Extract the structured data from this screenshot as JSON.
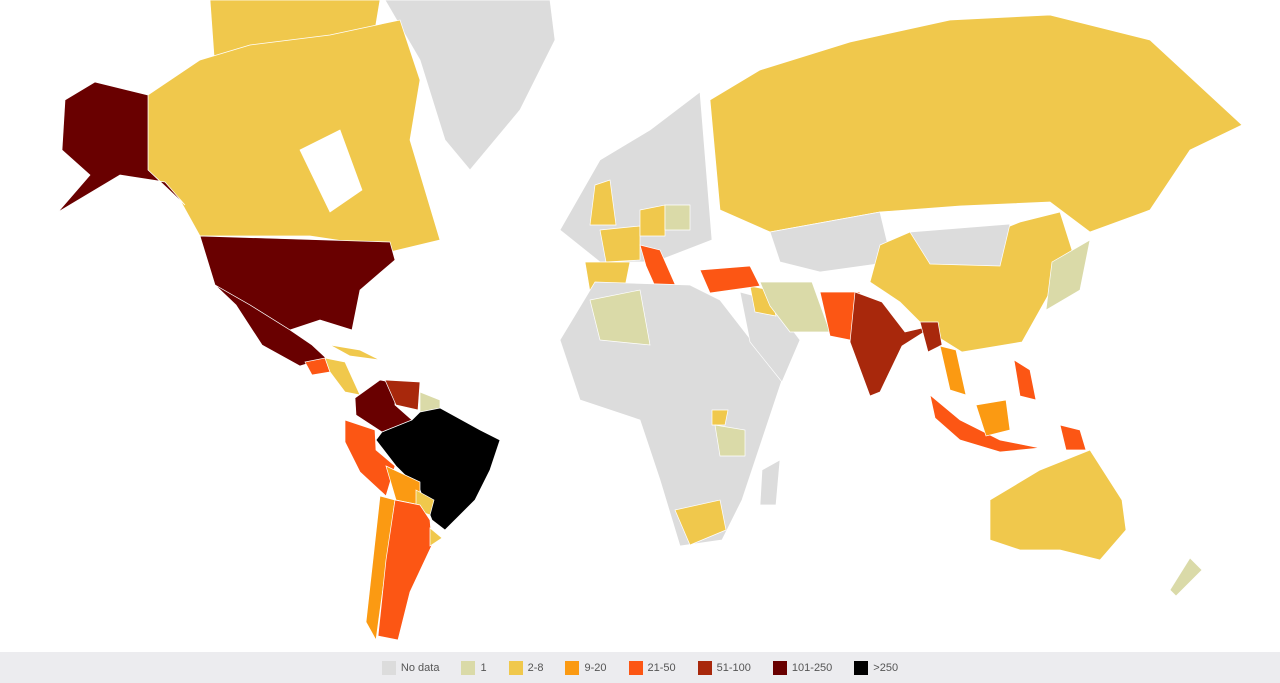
{
  "legend": {
    "items": [
      {
        "label": "No data",
        "color": "#dcdcdc"
      },
      {
        "label": "1",
        "color": "#dadaa8"
      },
      {
        "label": "2-8",
        "color": "#f0c84c"
      },
      {
        "label": "9-20",
        "color": "#fb9a12"
      },
      {
        "label": "21-50",
        "color": "#fc5614"
      },
      {
        "label": "51-100",
        "color": "#a8280c"
      },
      {
        "label": "101-250",
        "color": "#690000"
      },
      {
        "label": ">250",
        "color": "#000000"
      }
    ]
  },
  "regions": {
    "greenland": "No data",
    "canada": "2-8",
    "arctic-islands": "2-8",
    "alaska": "101-250",
    "usa": "101-250",
    "mexico": "101-250",
    "guatemala": "21-50",
    "central-america": "2-8",
    "cuba": "2-8",
    "colombia": "101-250",
    "venezuela": "51-100",
    "guianas": "1",
    "brazil": ">250",
    "peru": "21-50",
    "bolivia": "9-20",
    "paraguay": "2-8",
    "chile": "9-20",
    "argentina": "21-50",
    "uruguay": "2-8",
    "europe": "No data",
    "uk": "2-8",
    "france": "2-8",
    "iberia": "2-8",
    "germany": "2-8",
    "poland": "1",
    "italy": "21-50",
    "turkey": "21-50",
    "russia": "2-8",
    "kazakhstan": "No data",
    "china": "2-8",
    "mongolia": "No data",
    "middle-east": "No data",
    "iraq-syria": "2-8",
    "iran": "1",
    "pakistan": "21-50",
    "india": "51-100",
    "myanmar": "51-100",
    "thailand": "9-20",
    "indonesia": "21-50",
    "borneo": "9-20",
    "png": "21-50",
    "philippines": "21-50",
    "japan": "1",
    "australia": "2-8",
    "new-zealand": "1",
    "africa": "No data",
    "algeria": "1",
    "south-africa": "2-8",
    "tanzania": "1",
    "uganda": "2-8",
    "madagascar": "No data"
  }
}
